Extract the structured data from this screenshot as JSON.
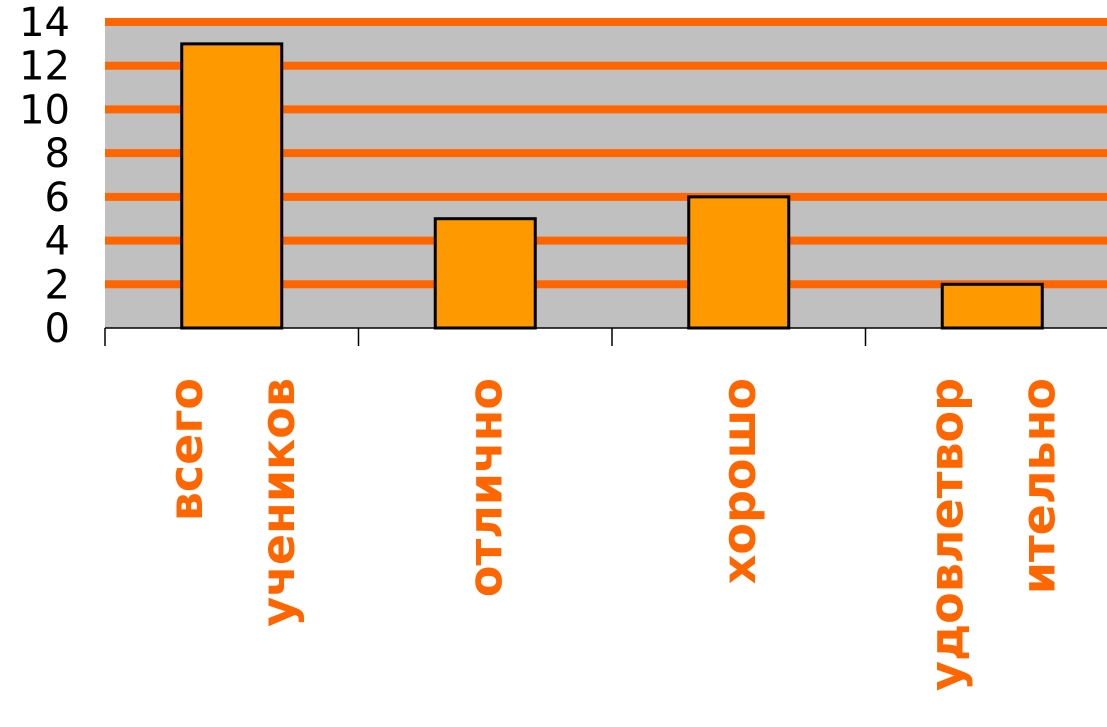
{
  "chart_data": {
    "type": "bar",
    "categories": [
      [
        "всего",
        "учеников"
      ],
      [
        "отлично"
      ],
      [
        "хорошо"
      ],
      [
        "удовлетвор",
        "ительно"
      ]
    ],
    "values": [
      13,
      5,
      6,
      2
    ],
    "ylim": [
      0,
      14
    ],
    "yticks": [
      "0",
      "2",
      "4",
      "6",
      "8",
      "10",
      "12",
      "14"
    ],
    "title": "",
    "xlabel": "",
    "ylabel": "",
    "grid": true,
    "legend": "none",
    "colors": {
      "plot_background": "#c0c0c0",
      "gridline": "#ff6600",
      "bar_fill": "#ff9900",
      "bar_stroke": "#000000",
      "category_label": "#ff6600",
      "axis": "#000000"
    }
  }
}
